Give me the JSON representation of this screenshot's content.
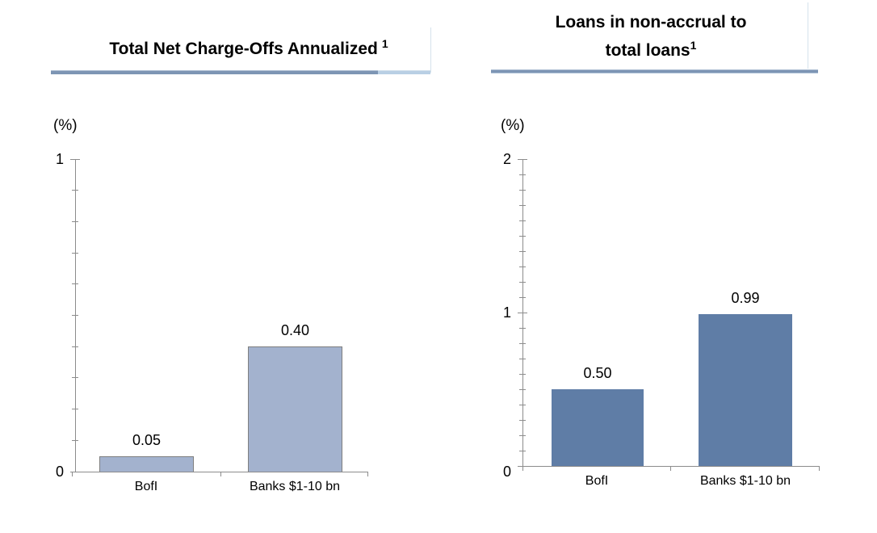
{
  "chart_data": [
    {
      "type": "bar",
      "title": "Total Net Charge-Offs Annualized",
      "title_superscript": "1",
      "ylabel": "(%)",
      "categories": [
        "BofI",
        "Banks $1-10 bn"
      ],
      "values": [
        0.05,
        0.4
      ],
      "value_labels": [
        "0.05",
        "0.40"
      ],
      "ylim": [
        0,
        1
      ],
      "ytick_values": [
        0,
        1
      ],
      "ytick_labels": [
        "0",
        "1"
      ],
      "minor_tick_step": 0.1,
      "grid": false,
      "legend": "none",
      "bar_color": "#a3b2ce",
      "bar_border_color": "#7f7f7f"
    },
    {
      "type": "bar",
      "title": "Loans in non-accrual to total loans",
      "title_lines": [
        "Loans in non-accrual to",
        "total loans"
      ],
      "title_superscript": "1",
      "ylabel": "(%)",
      "categories": [
        "BofI",
        "Banks $1-10 bn"
      ],
      "values": [
        0.5,
        0.99
      ],
      "value_labels": [
        "0.50",
        "0.99"
      ],
      "ylim": [
        0,
        2
      ],
      "ytick_values": [
        0,
        1,
        2
      ],
      "ytick_labels": [
        "0",
        "1",
        "2"
      ],
      "minor_tick_step": 0.1,
      "grid": false,
      "legend": "none",
      "bar_color": "#5f7da6",
      "bar_border_color": "none"
    }
  ],
  "decor": {
    "title_rule_dark": "#7d95b4",
    "title_rule_light": "#b9cfe4",
    "axis_color": "#8c8c8c"
  }
}
